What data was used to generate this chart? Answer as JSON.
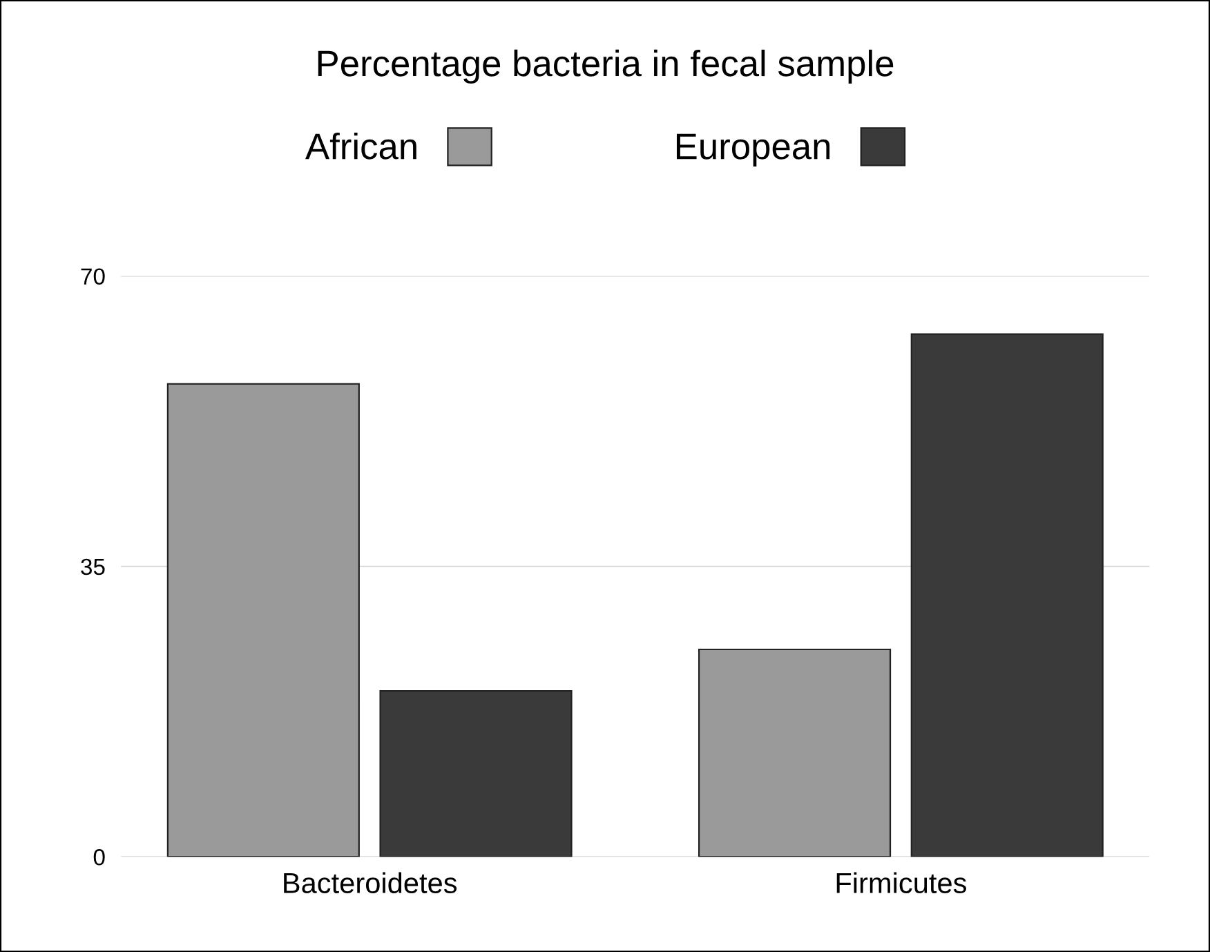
{
  "chart_data": {
    "type": "bar",
    "title": "Percentage bacteria in fecal sample",
    "categories": [
      "Bacteroidetes",
      "Firmicutes"
    ],
    "series": [
      {
        "name": "African",
        "color": "#9a9a9a",
        "values": [
          57,
          25
        ]
      },
      {
        "name": "European",
        "color": "#3a3a3a",
        "values": [
          20,
          63
        ]
      }
    ],
    "ylim": [
      0,
      70
    ],
    "yticks": [
      0,
      35,
      70
    ],
    "grid": "y",
    "legend": "top"
  }
}
